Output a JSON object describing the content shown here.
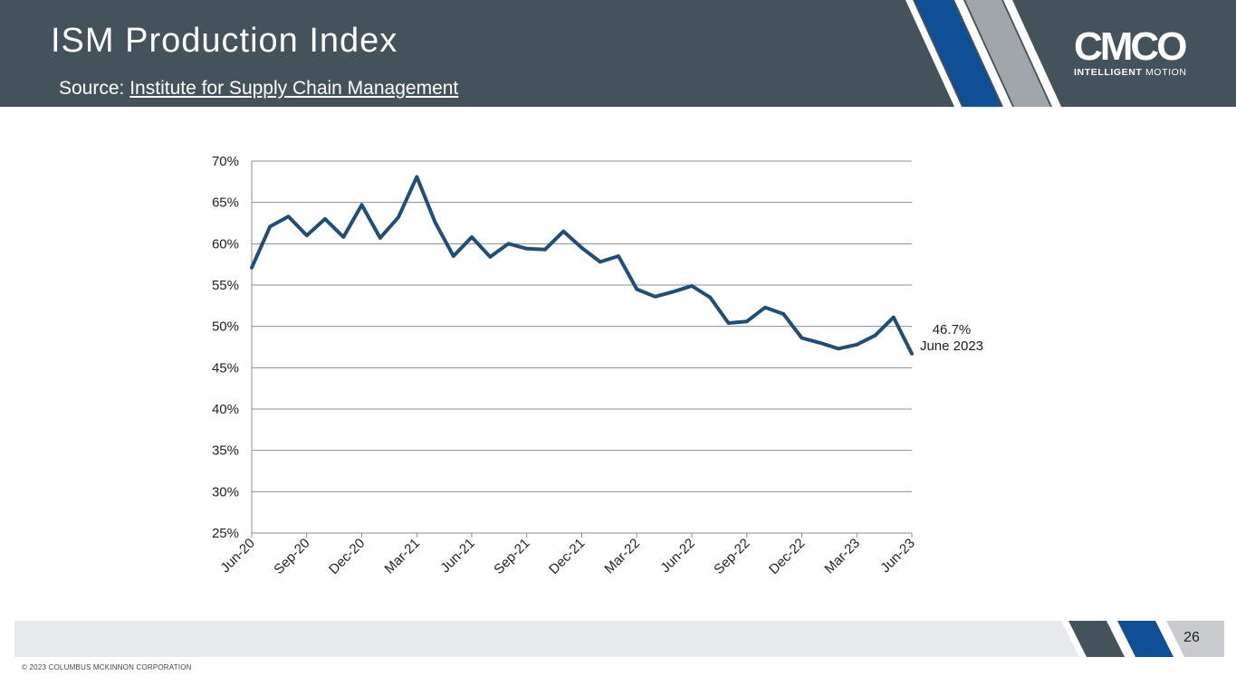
{
  "header": {
    "title": "ISM Production Index",
    "source_prefix": "Source: ",
    "source_link": "Institute for Supply Chain Management"
  },
  "logo": {
    "wordmark": "CMCO",
    "tagline_bold": "INTELLIGENT",
    "tagline_light": " MOTION"
  },
  "colors": {
    "header_bg": "#44525b",
    "stripe_blue": "#0f4f96",
    "stripe_gray": "#a1a6aa",
    "line": "#1f4e79",
    "grid": "#8c8c8c",
    "footer_band": "#e8e9ec",
    "footer_dark": "#44525b",
    "footer_blue": "#0f4f96",
    "footer_gray": "#c8cacd"
  },
  "chart_data": {
    "type": "line",
    "title": "ISM Production Index",
    "xlabel": "",
    "ylabel": "",
    "ylim": [
      0.25,
      0.7
    ],
    "yticks": [
      0.25,
      0.3,
      0.35,
      0.4,
      0.45,
      0.5,
      0.55,
      0.6,
      0.65,
      0.7
    ],
    "ytick_labels": [
      "25%",
      "30%",
      "35%",
      "40%",
      "45%",
      "50%",
      "55%",
      "60%",
      "65%",
      "70%"
    ],
    "xtick_labels": [
      "Jun-20",
      "Sep-20",
      "Dec-20",
      "Mar-21",
      "Jun-21",
      "Sep-21",
      "Dec-21",
      "Mar-22",
      "Jun-22",
      "Sep-22",
      "Dec-22",
      "Mar-23",
      "Jun-23"
    ],
    "grid": true,
    "series": [
      {
        "name": "ISM Production Index",
        "x": [
          "Jun-20",
          "Jul-20",
          "Aug-20",
          "Sep-20",
          "Oct-20",
          "Nov-20",
          "Dec-20",
          "Jan-21",
          "Feb-21",
          "Mar-21",
          "Apr-21",
          "May-21",
          "Jun-21",
          "Jul-21",
          "Aug-21",
          "Sep-21",
          "Oct-21",
          "Nov-21",
          "Dec-21",
          "Jan-22",
          "Feb-22",
          "Mar-22",
          "Apr-22",
          "May-22",
          "Jun-22",
          "Jul-22",
          "Aug-22",
          "Sep-22",
          "Oct-22",
          "Nov-22",
          "Dec-22",
          "Jan-23",
          "Feb-23",
          "Mar-23",
          "Apr-23",
          "May-23",
          "Jun-23"
        ],
        "values": [
          0.571,
          0.621,
          0.633,
          0.61,
          0.63,
          0.608,
          0.647,
          0.607,
          0.632,
          0.681,
          0.626,
          0.585,
          0.608,
          0.584,
          0.6,
          0.594,
          0.593,
          0.615,
          0.595,
          0.578,
          0.585,
          0.545,
          0.536,
          0.542,
          0.549,
          0.535,
          0.504,
          0.506,
          0.523,
          0.515,
          0.486,
          0.48,
          0.473,
          0.478,
          0.489,
          0.511,
          0.467
        ]
      }
    ],
    "annotation": {
      "value_label": "46.7%",
      "date_label": "June 2023"
    }
  },
  "footer": {
    "page_number": "26",
    "copyright": "© 2023 COLUMBUS MCKINNON CORPORATION"
  }
}
